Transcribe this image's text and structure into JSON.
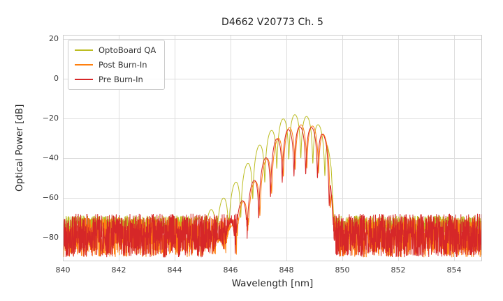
{
  "chart_data": {
    "type": "line",
    "title": "D4662 V20773 Ch. 5",
    "xlabel": "Wavelength [nm]",
    "ylabel": "Optical Power [dB]",
    "xlim": [
      840,
      855
    ],
    "ylim": [
      -92,
      22
    ],
    "grid": true,
    "grid_color": "#dddddd",
    "border_color": "#cccccc",
    "legend_position": "upper left",
    "samples": 2400,
    "x_ticks": [
      {
        "value": 840,
        "label": "840"
      },
      {
        "value": 842,
        "label": "842"
      },
      {
        "value": 844,
        "label": "844"
      },
      {
        "value": 846,
        "label": "846"
      },
      {
        "value": 848,
        "label": "848"
      },
      {
        "value": 850,
        "label": "850"
      },
      {
        "value": 852,
        "label": "852"
      },
      {
        "value": 854,
        "label": "854"
      }
    ],
    "y_ticks": [
      {
        "value": 20,
        "label": "20"
      },
      {
        "value": 0,
        "label": "0"
      },
      {
        "value": -20,
        "label": "−20"
      },
      {
        "value": -40,
        "label": "−40"
      },
      {
        "value": -60,
        "label": "−60"
      },
      {
        "value": -80,
        "label": "−80"
      }
    ],
    "series": [
      {
        "name": "OptoBoard QA",
        "color": "#bcbd22",
        "seed": 7,
        "floor_mean": -73.5,
        "floor_amp": 4.5,
        "mode_period": 0.43,
        "mode_phase": 848.3,
        "notch_floor": 0.006,
        "peak_db": -18,
        "peak_nm": 848.4,
        "envelope": [
          [
            840.0,
            -90
          ],
          [
            843.5,
            -84
          ],
          [
            844.3,
            -76
          ],
          [
            845.0,
            -69
          ],
          [
            845.5,
            -64
          ],
          [
            846.0,
            -56
          ],
          [
            846.5,
            -45
          ],
          [
            847.0,
            -34
          ],
          [
            847.4,
            -27
          ],
          [
            847.8,
            -21
          ],
          [
            848.1,
            -18.5
          ],
          [
            848.5,
            -18
          ],
          [
            848.9,
            -20
          ],
          [
            849.2,
            -24
          ],
          [
            849.45,
            -28
          ],
          [
            849.6,
            -45
          ],
          [
            849.72,
            -75
          ],
          [
            849.85,
            -92
          ],
          [
            855.0,
            -92
          ]
        ]
      },
      {
        "name": "Post Burn-In",
        "color": "#ff7f0e",
        "seed": 13,
        "floor_mean": -80,
        "floor_amp": 10,
        "mode_period": 0.42,
        "mode_phase": 848.52,
        "notch_floor": 0.006,
        "peak_db": -23,
        "peak_nm": 848.75,
        "envelope": [
          [
            840.0,
            -92
          ],
          [
            845.4,
            -85
          ],
          [
            846.0,
            -75
          ],
          [
            846.4,
            -63
          ],
          [
            846.9,
            -51
          ],
          [
            847.3,
            -40
          ],
          [
            847.7,
            -30
          ],
          [
            848.05,
            -25
          ],
          [
            848.4,
            -23.5
          ],
          [
            848.75,
            -23
          ],
          [
            849.05,
            -24.5
          ],
          [
            849.3,
            -27
          ],
          [
            849.5,
            -33
          ],
          [
            849.62,
            -50
          ],
          [
            849.74,
            -85
          ],
          [
            855.0,
            -92
          ]
        ]
      },
      {
        "name": "Pre Burn-In",
        "color": "#d62728",
        "seed": 42,
        "floor_mean": -79,
        "floor_amp": 11,
        "mode_period": 0.42,
        "mode_phase": 848.48,
        "notch_floor": 0.0035,
        "peak_db": -24,
        "peak_nm": 848.7,
        "envelope": [
          [
            840.0,
            -92
          ],
          [
            845.3,
            -85
          ],
          [
            845.9,
            -75
          ],
          [
            846.3,
            -64
          ],
          [
            846.8,
            -52
          ],
          [
            847.2,
            -41
          ],
          [
            847.6,
            -31
          ],
          [
            848.0,
            -26
          ],
          [
            848.35,
            -24.5
          ],
          [
            848.7,
            -24
          ],
          [
            849.0,
            -25
          ],
          [
            849.25,
            -27
          ],
          [
            849.45,
            -31
          ],
          [
            849.58,
            -45
          ],
          [
            849.7,
            -80
          ],
          [
            849.8,
            -92
          ],
          [
            855.0,
            -92
          ]
        ]
      }
    ]
  }
}
